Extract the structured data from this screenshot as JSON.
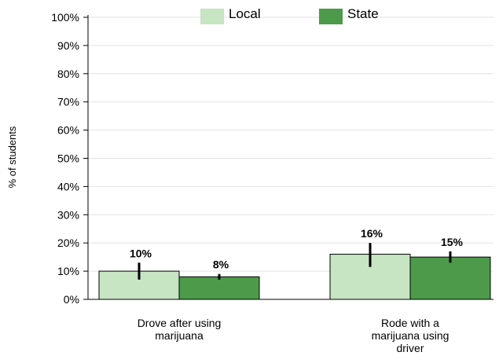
{
  "chart_data": {
    "type": "bar",
    "ylabel": "% of students",
    "yticks": [
      "0%",
      "10%",
      "20%",
      "30%",
      "40%",
      "50%",
      "60%",
      "70%",
      "80%",
      "90%",
      "100%"
    ],
    "ylim": [
      0,
      100
    ],
    "grid": true,
    "legend_position": "top",
    "categories": [
      [
        "Drove after using",
        "marijuana"
      ],
      [
        "Rode with a",
        "marijuana using",
        "driver"
      ]
    ],
    "series": [
      {
        "name": "Local",
        "color": "#c7e4c3",
        "values": [
          10,
          16
        ],
        "labels": [
          "10%",
          "16%"
        ],
        "error_low": [
          7,
          11.5
        ],
        "error_high": [
          13,
          20
        ]
      },
      {
        "name": "State",
        "color": "#4c9a4a",
        "values": [
          8,
          15
        ],
        "labels": [
          "8%",
          "15%"
        ],
        "error_low": [
          7,
          13
        ],
        "error_high": [
          9,
          17
        ]
      }
    ]
  }
}
